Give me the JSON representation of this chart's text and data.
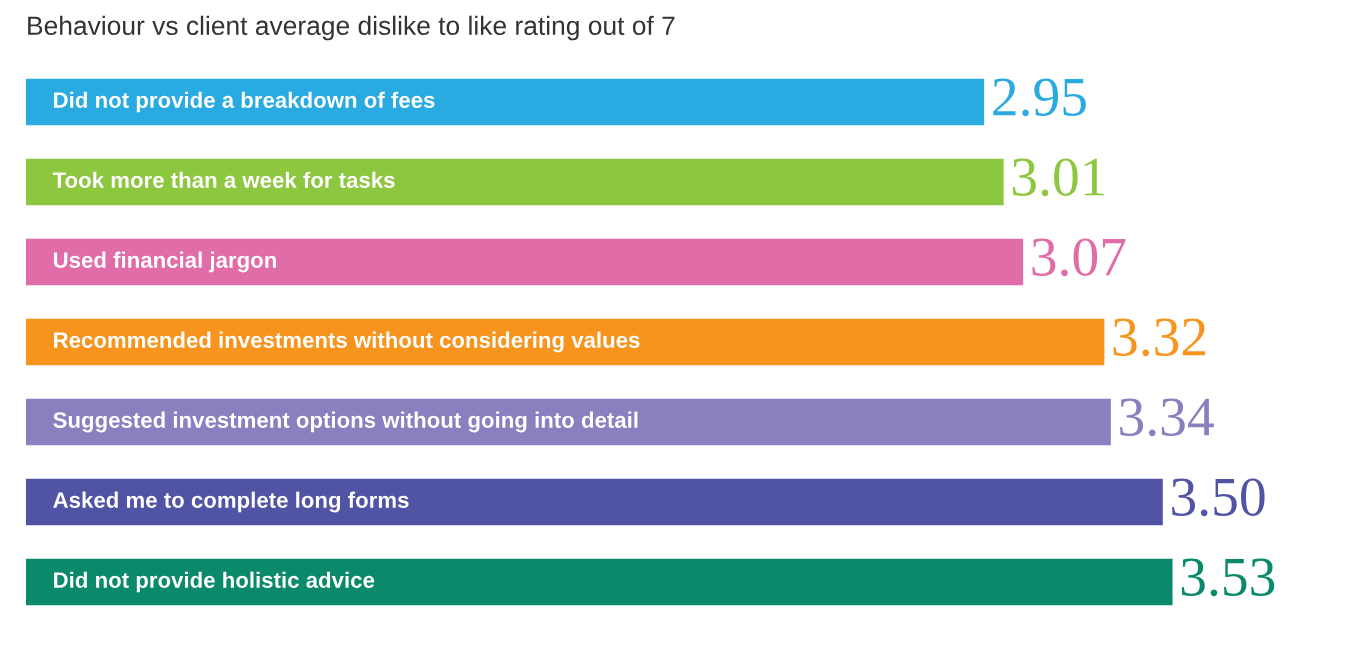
{
  "chart_data": {
    "type": "bar",
    "orientation": "horizontal",
    "title": "Behaviour vs client average dislike to like rating out of 7",
    "categories": [
      "Did not provide a breakdown of fees",
      "Took more than a week for tasks",
      "Used financial jargon",
      "Recommended investments without considering values",
      "Suggested investment options without going into detail",
      "Asked me to complete long forms",
      "Did not provide holistic advice"
    ],
    "values": [
      2.95,
      3.01,
      3.07,
      3.32,
      3.34,
      3.5,
      3.53
    ],
    "value_labels": [
      "2.95",
      "3.01",
      "3.07",
      "3.32",
      "3.34",
      "3.50",
      "3.53"
    ],
    "colors": [
      "#29abe2",
      "#8dc63f",
      "#e06ca8",
      "#f7941d",
      "#8b7fbf",
      "#5153a4",
      "#0a8a6a"
    ],
    "legend": false
  }
}
